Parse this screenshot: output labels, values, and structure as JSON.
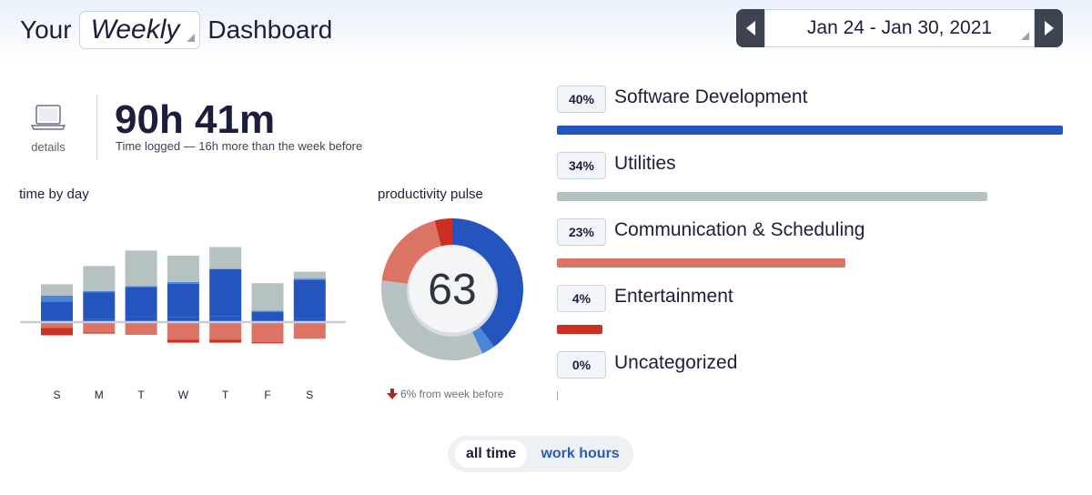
{
  "header": {
    "prefix": "Your",
    "period": "Weekly",
    "suffix": "Dashboard",
    "date_range": "Jan 24 - Jan 30, 2021"
  },
  "summary": {
    "details_label": "details",
    "total_time": "90h 41m",
    "subtitle": "Time logged — 16h more than the week before"
  },
  "time_by_day": {
    "title": "time by day"
  },
  "pulse": {
    "title": "productivity pulse",
    "score": "63",
    "change_text": "6% from week before"
  },
  "categories": [
    {
      "pct": "40%",
      "name": "Software Development",
      "fraction": 1.0,
      "color": "#2454bd"
    },
    {
      "pct": "34%",
      "name": "Utilities",
      "fraction": 0.85,
      "color": "#b6c1c1"
    },
    {
      "pct": "23%",
      "name": "Communication & Scheduling",
      "fraction": 0.57,
      "color": "#dc7466"
    },
    {
      "pct": "4%",
      "name": "Entertainment",
      "fraction": 0.09,
      "color": "#cc2e22"
    },
    {
      "pct": "0%",
      "name": "Uncategorized",
      "fraction": 0,
      "color": "#9aa3ae"
    }
  ],
  "toggle": {
    "all_time": "all time",
    "work_hours": "work hours",
    "active": "all time"
  },
  "colors": {
    "very_productive": "#2454bd",
    "productive": "#4a86d8",
    "neutral": "#b6c1c1",
    "distracting": "#dc7466",
    "very_distracting": "#cc2e22"
  },
  "chart_data": [
    {
      "type": "bar",
      "title": "time by day",
      "categories": [
        "S",
        "M",
        "T",
        "W",
        "T",
        "F",
        "S"
      ],
      "series": [
        {
          "name": "",
          "values": [
            0.4,
            0.6,
            0.9,
            0.9,
            1.0,
            0.4,
            0.7
          ],
          "color": "#2454bd"
        },
        {
          "name": "",
          "values": [
            3.2,
            4.6,
            5.2,
            5.8,
            8.2,
            1.4,
            6.6
          ],
          "color": "#2454bd"
        },
        {
          "name": "",
          "values": [
            1.0,
            0.2,
            0.2,
            0.3,
            0.1,
            0.2,
            0.3
          ],
          "color": "#4a86d8"
        },
        {
          "name": "",
          "values": [
            2.0,
            4.4,
            6.2,
            4.6,
            3.8,
            4.8,
            1.2
          ],
          "color": "#b6c1c1"
        },
        {
          "name": "",
          "values": [
            -1.0,
            -1.8,
            -2.1,
            -3.1,
            -3.1,
            -3.5,
            -2.9
          ],
          "color": "#dc7466"
        },
        {
          "name": "",
          "values": [
            -1.3,
            -0.2,
            -0.1,
            -0.5,
            -0.5,
            -0.2,
            0
          ],
          "color": "#cc2e22"
        }
      ]
    },
    {
      "type": "pie",
      "title": "productivity pulse",
      "center_label": "63",
      "slices": [
        {
          "value": 40,
          "color": "#2454bd"
        },
        {
          "value": 3,
          "color": "#4a86d8"
        },
        {
          "value": 34,
          "color": "#b6c1c1"
        },
        {
          "value": 19,
          "color": "#dc7466"
        },
        {
          "value": 4,
          "color": "#cc2e22"
        }
      ]
    }
  ]
}
